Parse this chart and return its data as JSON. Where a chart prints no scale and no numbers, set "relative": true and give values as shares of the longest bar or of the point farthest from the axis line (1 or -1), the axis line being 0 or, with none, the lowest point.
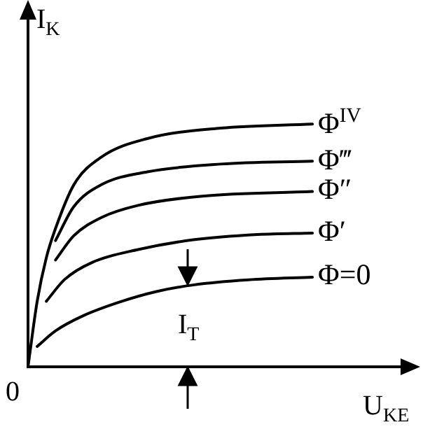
{
  "chart_data": {
    "type": "line",
    "relative": true,
    "xlabel": "U$_{KE}$",
    "ylabel": "I$_{K}$",
    "grid": false,
    "legend": false,
    "marker": "none",
    "line_style": "solid",
    "annotations": [
      "0",
      "I$_{T}$"
    ],
    "categories": [
      null,
      null,
      null,
      null,
      null,
      null,
      null,
      null,
      null,
      null,
      null,
      null,
      null,
      null,
      null,
      null,
      null,
      null,
      null,
      null,
      null,
      null,
      null,
      null,
      null,
      null,
      null,
      null,
      null,
      null,
      null,
      null,
      null,
      null,
      null,
      null,
      null,
      null,
      null,
      null,
      null
    ],
    "series": [
      {
        "name": "Φ=0",
        "color": "#000000",
        "values": [
          null,
          0.084,
          null,
          0.148,
          null,
          null,
          0.21,
          null,
          null,
          null,
          0.267,
          null,
          null,
          null,
          0.31,
          null,
          null,
          null,
          0.337,
          null,
          null,
          null,
          null,
          null,
          0.358,
          null,
          null,
          null,
          null,
          null,
          null,
          0.369,
          null,
          null,
          null,
          null,
          null,
          null,
          null,
          null,
          null
        ]
      },
      {
        "name": "Φ′",
        "color": "#000000",
        "values": [
          null,
          null,
          0.27,
          null,
          0.36,
          null,
          null,
          0.43,
          null,
          null,
          null,
          null,
          0.483,
          null,
          null,
          null,
          null,
          null,
          0.523,
          null,
          null,
          null,
          null,
          null,
          null,
          0.545,
          null,
          null,
          null,
          null,
          null,
          0.551,
          null,
          null,
          null,
          null,
          null,
          null,
          null,
          null,
          null
        ]
      },
      {
        "name": "Φ″",
        "color": "#000000",
        "values": [
          null,
          null,
          null,
          0.44,
          null,
          0.54,
          null,
          null,
          0.615,
          null,
          null,
          null,
          0.665,
          null,
          null,
          null,
          null,
          null,
          null,
          0.703,
          null,
          null,
          null,
          null,
          null,
          null,
          null,
          null,
          null,
          null,
          null,
          0.722,
          null,
          null,
          null,
          null,
          null,
          null,
          null,
          null,
          null
        ]
      },
      {
        "name": "Φ‴",
        "color": "#000000",
        "values": [
          null,
          null,
          null,
          0.52,
          null,
          0.66,
          null,
          null,
          0.75,
          null,
          null,
          null,
          null,
          0.803,
          null,
          null,
          null,
          null,
          null,
          null,
          null,
          0.835,
          null,
          null,
          null,
          null,
          null,
          null,
          null,
          null,
          null,
          0.847,
          null,
          null,
          null,
          null,
          null,
          null,
          null,
          null,
          null
        ]
      },
      {
        "name": "Φ$^{IV}$",
        "color": "#000000",
        "values": [
          0,
          0.27,
          0.45,
          0.57,
          null,
          0.75,
          null,
          null,
          0.864,
          null,
          null,
          null,
          null,
          0.94,
          null,
          null,
          null,
          null,
          null,
          null,
          null,
          0.983,
          null,
          null,
          null,
          null,
          null,
          null,
          null,
          null,
          null,
          1,
          null,
          null,
          null,
          null,
          null,
          null,
          null,
          null,
          null
        ]
      }
    ]
  }
}
